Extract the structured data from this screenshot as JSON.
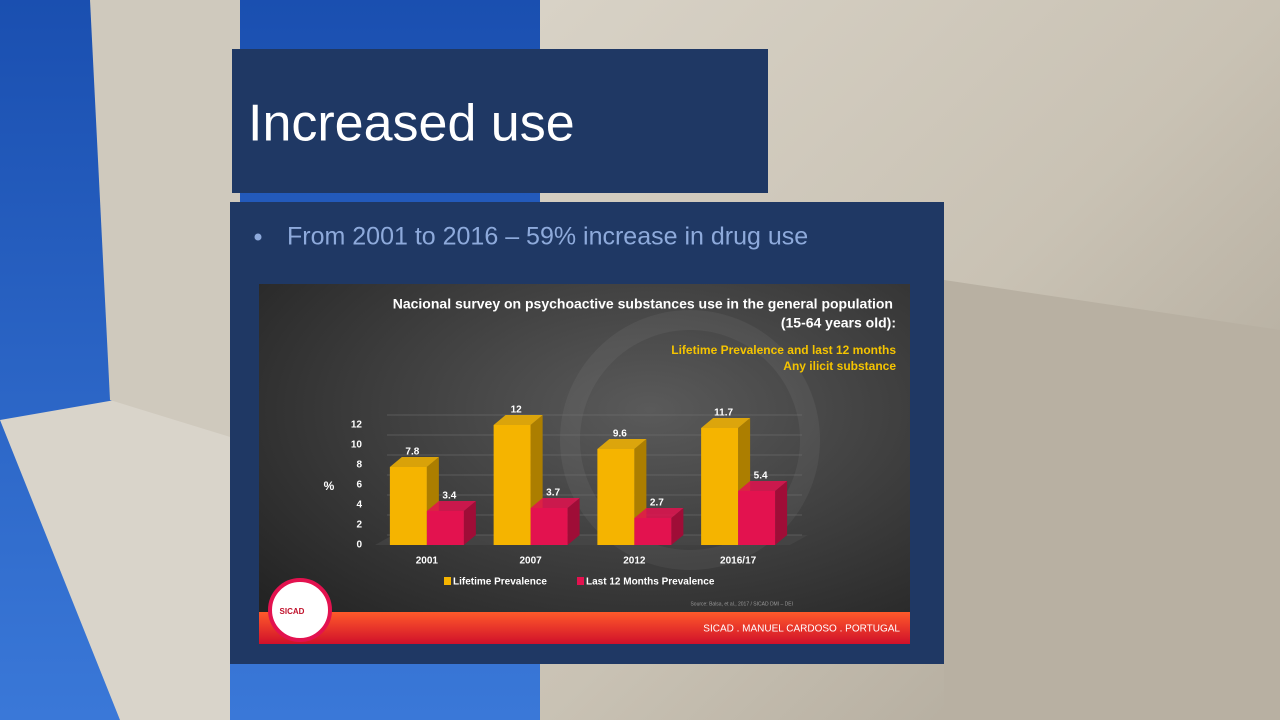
{
  "slide": {
    "title": "Increased use",
    "bullet": "From 2001 to 2016 – 59% increase in drug use"
  },
  "chart_data": {
    "type": "bar",
    "title": "Nacional survey on psychoactive substances use in the general population",
    "subtitle": "(15-64 years old):",
    "annotations": [
      "Lifetime Prevalence and last 12 months",
      "Any ilicit substance"
    ],
    "ylabel": "%",
    "categories": [
      "2001",
      "2007",
      "2012",
      "2016/17"
    ],
    "series": [
      {
        "name": "Lifetime Prevalence",
        "color": "#f5b400",
        "values": [
          7.8,
          12,
          9.6,
          11.7
        ]
      },
      {
        "name": "Last 12 Months Prevalence",
        "color": "#e3124f",
        "values": [
          3.4,
          3.7,
          2.7,
          5.4
        ]
      }
    ],
    "ylim": [
      0,
      12
    ],
    "yticks": [
      0,
      2,
      4,
      6,
      8,
      10,
      12
    ],
    "source": "Source: Balsa, et al., 2017 / SICAD DMI – DEI",
    "footer": "SICAD . MANUEL CARDOSO . PORTUGAL",
    "logo": "SICAD"
  }
}
